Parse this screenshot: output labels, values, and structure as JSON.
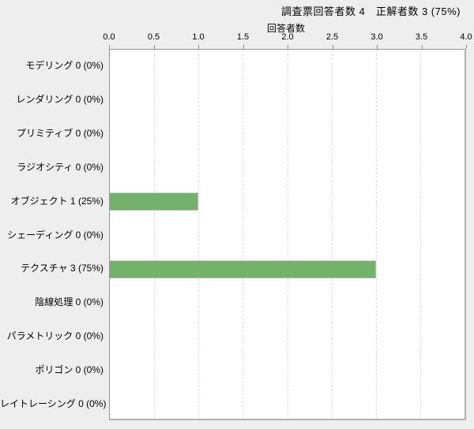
{
  "title": "調査票回答者数 4　正解者数 3 (75%)",
  "chart_data": {
    "type": "bar",
    "orientation": "horizontal",
    "title": "調査票回答者数 4　正解者数 3 (75%)",
    "xlabel": "回答者数",
    "xlim": [
      0,
      4
    ],
    "xticks": [
      0.0,
      0.5,
      1.0,
      1.5,
      2.0,
      2.5,
      3.0,
      3.5,
      4.0
    ],
    "xtick_labels": [
      "0.0",
      "0.5",
      "1.0",
      "1.5",
      "2.0",
      "2.5",
      "3.0",
      "3.5",
      "4.0"
    ],
    "categories": [
      "モデリング",
      "レンダリング",
      "プリミティブ",
      "ラジオシティ",
      "オブジェクト",
      "シェーディング",
      "テクスチャ",
      "陰線処理",
      "パラメトリック",
      "ポリゴン",
      "レイトレーシング"
    ],
    "values": [
      0,
      0,
      0,
      0,
      1,
      0,
      3,
      0,
      0,
      0,
      0
    ],
    "value_labels": [
      "0 (0%)",
      "0 (0%)",
      "0 (0%)",
      "0 (0%)",
      "1 (25%)",
      "0 (0%)",
      "3 (75%)",
      "0 (0%)",
      "0 (0%)",
      "0 (0%)",
      "0 (0%)"
    ],
    "grid": true,
    "legend": "none"
  },
  "colors": {
    "page_background": "#eeeeee",
    "plot_background": "#ffffff",
    "axis_border": "#969696",
    "gridline": "#dcdcdc",
    "bar_fill": "#73b26b",
    "bar_border": "#b8b8b8",
    "text": "#000000"
  }
}
